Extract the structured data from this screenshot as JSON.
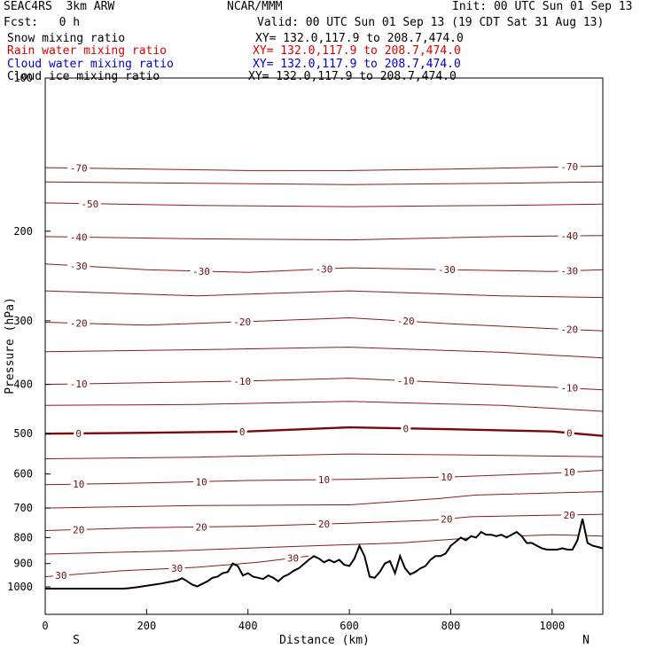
{
  "header": {
    "model": "SEAC4RS  3km ARW",
    "org": "NCAR/MMM",
    "init": "Init: 00 UTC Sun 01 Sep 13",
    "fcst": "Fcst:   0 h",
    "valid": "Valid: 00 UTC Sun 01 Sep 13 (19 CDT Sat 31 Aug 13)"
  },
  "fields": [
    {
      "name": "Snow mixing ratio",
      "xy": "XY= 132.0,117.9 to 208.7,474.0",
      "color": "#000000"
    },
    {
      "name": "Rain water mixing ratio",
      "xy": "XY= 132.0,117.9 to 208.7,474.0",
      "color": "#e00000"
    },
    {
      "name": "Cloud water mixing ratio",
      "xy": "XY= 132.0,117.9 to 208.7,474.0",
      "color": "#0000d0"
    },
    {
      "name": "Cloud ice mixing ratio",
      "xy": "XY= 132.0,117.9 to 208.7,474.0",
      "color": "#000000"
    }
  ],
  "chart_data": {
    "type": "line",
    "xlabel": "Distance (km)",
    "ylabel": "Pressure (hPa)",
    "xlim": [
      0,
      1100
    ],
    "ylim": [
      1000,
      100
    ],
    "x_ticks": [
      0,
      200,
      400,
      600,
      800,
      1000
    ],
    "y_ticks": [
      100,
      200,
      300,
      400,
      500,
      600,
      700,
      800,
      900,
      1000
    ],
    "y_scale": "log",
    "direction_labels": {
      "left": "S",
      "right": "N"
    },
    "colors": {
      "isotherm": "#8b1a1a",
      "freezing_line": "#7a0a0a",
      "terrain": "#000000"
    },
    "isotherms": [
      {
        "level_c": -70,
        "labels": [
          "-70",
          "-70"
        ],
        "points": [
          [
            0,
            150
          ],
          [
            200,
            151
          ],
          [
            400,
            152
          ],
          [
            600,
            152
          ],
          [
            800,
            151
          ],
          [
            1100,
            149
          ]
        ]
      },
      {
        "level_c": -60,
        "labels": [],
        "points": [
          [
            0,
            160
          ],
          [
            300,
            161
          ],
          [
            600,
            162
          ],
          [
            900,
            161
          ],
          [
            1100,
            160
          ]
        ]
      },
      {
        "level_c": -50,
        "labels": [
          "-50"
        ],
        "points": [
          [
            0,
            176
          ],
          [
            300,
            178
          ],
          [
            600,
            179
          ],
          [
            900,
            178
          ],
          [
            1100,
            177
          ]
        ]
      },
      {
        "level_c": -40,
        "labels": [
          "-40",
          "-40"
        ],
        "points": [
          [
            0,
            205
          ],
          [
            300,
            207
          ],
          [
            600,
            208
          ],
          [
            900,
            205
          ],
          [
            1100,
            204
          ]
        ]
      },
      {
        "level_c": -30,
        "labels": [
          "-30",
          "-30",
          "-30",
          "-30",
          "-30"
        ],
        "points": [
          [
            0,
            232
          ],
          [
            200,
            238
          ],
          [
            400,
            241
          ],
          [
            600,
            236
          ],
          [
            800,
            238
          ],
          [
            1000,
            240
          ],
          [
            1100,
            238
          ]
        ]
      },
      {
        "level_c": -25,
        "labels": [],
        "points": [
          [
            0,
            262
          ],
          [
            300,
            268
          ],
          [
            600,
            262
          ],
          [
            900,
            268
          ],
          [
            1100,
            270
          ]
        ]
      },
      {
        "level_c": -20,
        "labels": [
          "-20",
          "-20",
          "-20",
          "-20"
        ],
        "points": [
          [
            0,
            302
          ],
          [
            200,
            306
          ],
          [
            400,
            301
          ],
          [
            600,
            296
          ],
          [
            800,
            304
          ],
          [
            1000,
            311
          ],
          [
            1100,
            314
          ]
        ]
      },
      {
        "level_c": -15,
        "labels": [],
        "points": [
          [
            0,
            345
          ],
          [
            300,
            342
          ],
          [
            600,
            338
          ],
          [
            900,
            346
          ],
          [
            1100,
            355
          ]
        ]
      },
      {
        "level_c": -10,
        "labels": [
          "-10",
          "-10",
          "-10",
          "-10"
        ],
        "points": [
          [
            0,
            400
          ],
          [
            200,
            397
          ],
          [
            400,
            394
          ],
          [
            600,
            389
          ],
          [
            800,
            397
          ],
          [
            1000,
            405
          ],
          [
            1100,
            410
          ]
        ]
      },
      {
        "level_c": -5,
        "labels": [],
        "points": [
          [
            0,
            440
          ],
          [
            300,
            438
          ],
          [
            600,
            432
          ],
          [
            900,
            440
          ],
          [
            1100,
            452
          ]
        ]
      },
      {
        "level_c": 0,
        "labels": [
          "0",
          "0",
          "0",
          "0"
        ],
        "points": [
          [
            0,
            500
          ],
          [
            200,
            498
          ],
          [
            400,
            495
          ],
          [
            600,
            486
          ],
          [
            800,
            490
          ],
          [
            1000,
            495
          ],
          [
            1100,
            505
          ]
        ]
      },
      {
        "level_c": 5,
        "labels": [],
        "points": [
          [
            0,
            560
          ],
          [
            300,
            556
          ],
          [
            600,
            548
          ],
          [
            800,
            550
          ],
          [
            1100,
            555
          ]
        ]
      },
      {
        "level_c": 10,
        "labels": [
          "10",
          "10",
          "10",
          "10",
          "10"
        ],
        "points": [
          [
            0,
            630
          ],
          [
            200,
            625
          ],
          [
            400,
            618
          ],
          [
            600,
            615
          ],
          [
            800,
            608
          ],
          [
            1000,
            598
          ],
          [
            1100,
            590
          ]
        ]
      },
      {
        "level_c": 15,
        "labels": [],
        "points": [
          [
            0,
            700
          ],
          [
            300,
            692
          ],
          [
            600,
            690
          ],
          [
            780,
            670
          ],
          [
            850,
            660
          ],
          [
            1100,
            650
          ]
        ]
      },
      {
        "level_c": 20,
        "labels": [
          "20",
          "20",
          "20",
          "20",
          "20"
        ],
        "points": [
          [
            0,
            775
          ],
          [
            200,
            765
          ],
          [
            400,
            760
          ],
          [
            600,
            750
          ],
          [
            760,
            740
          ],
          [
            840,
            728
          ],
          [
            1100,
            720
          ]
        ]
      },
      {
        "level_c": 25,
        "labels": [],
        "points": [
          [
            0,
            862
          ],
          [
            250,
            850
          ],
          [
            500,
            832
          ],
          [
            700,
            820
          ],
          [
            850,
            800
          ],
          [
            1000,
            790
          ],
          [
            1100,
            795
          ]
        ]
      },
      {
        "level_c": 30,
        "labels": [
          "30",
          "30",
          "30"
        ],
        "points": [
          [
            0,
            955
          ],
          [
            150,
            930
          ],
          [
            300,
            915
          ],
          [
            420,
            895
          ],
          [
            520,
            870
          ]
        ]
      }
    ],
    "terrain": {
      "x": [
        0,
        110,
        120,
        135,
        155,
        165,
        180,
        200,
        230,
        240,
        260,
        270,
        280,
        290,
        300,
        320,
        330,
        340,
        350,
        360,
        370,
        380,
        390,
        400,
        410,
        420,
        430,
        440,
        450,
        460,
        470,
        480,
        490,
        500,
        520,
        530,
        540,
        550,
        560,
        570,
        580,
        590,
        600,
        610,
        620,
        630,
        640,
        650,
        660,
        670,
        680,
        690,
        700,
        710,
        720,
        730,
        740,
        750,
        760,
        770,
        780,
        790,
        800,
        810,
        820,
        830,
        840,
        850,
        860,
        870,
        880,
        890,
        900,
        910,
        920,
        930,
        940,
        950,
        960,
        970,
        980,
        990,
        1000,
        1010,
        1020,
        1030,
        1040,
        1050,
        1060,
        1070,
        1080,
        1090,
        1100
      ],
      "p": [
        1008,
        1008,
        1008,
        1008,
        1008,
        1006,
        1002,
        995,
        985,
        980,
        972,
        962,
        975,
        990,
        998,
        975,
        960,
        955,
        940,
        935,
        900,
        910,
        950,
        940,
        955,
        960,
        965,
        950,
        960,
        975,
        955,
        945,
        930,
        920,
        885,
        870,
        880,
        895,
        885,
        895,
        885,
        905,
        910,
        880,
        830,
        870,
        955,
        960,
        935,
        900,
        890,
        940,
        870,
        920,
        945,
        935,
        920,
        910,
        885,
        870,
        870,
        860,
        830,
        815,
        800,
        810,
        795,
        800,
        780,
        790,
        790,
        795,
        790,
        800,
        790,
        780,
        795,
        820,
        820,
        830,
        840,
        845,
        845,
        845,
        840,
        845,
        845,
        810,
        735,
        820,
        830,
        835,
        840
      ]
    }
  }
}
